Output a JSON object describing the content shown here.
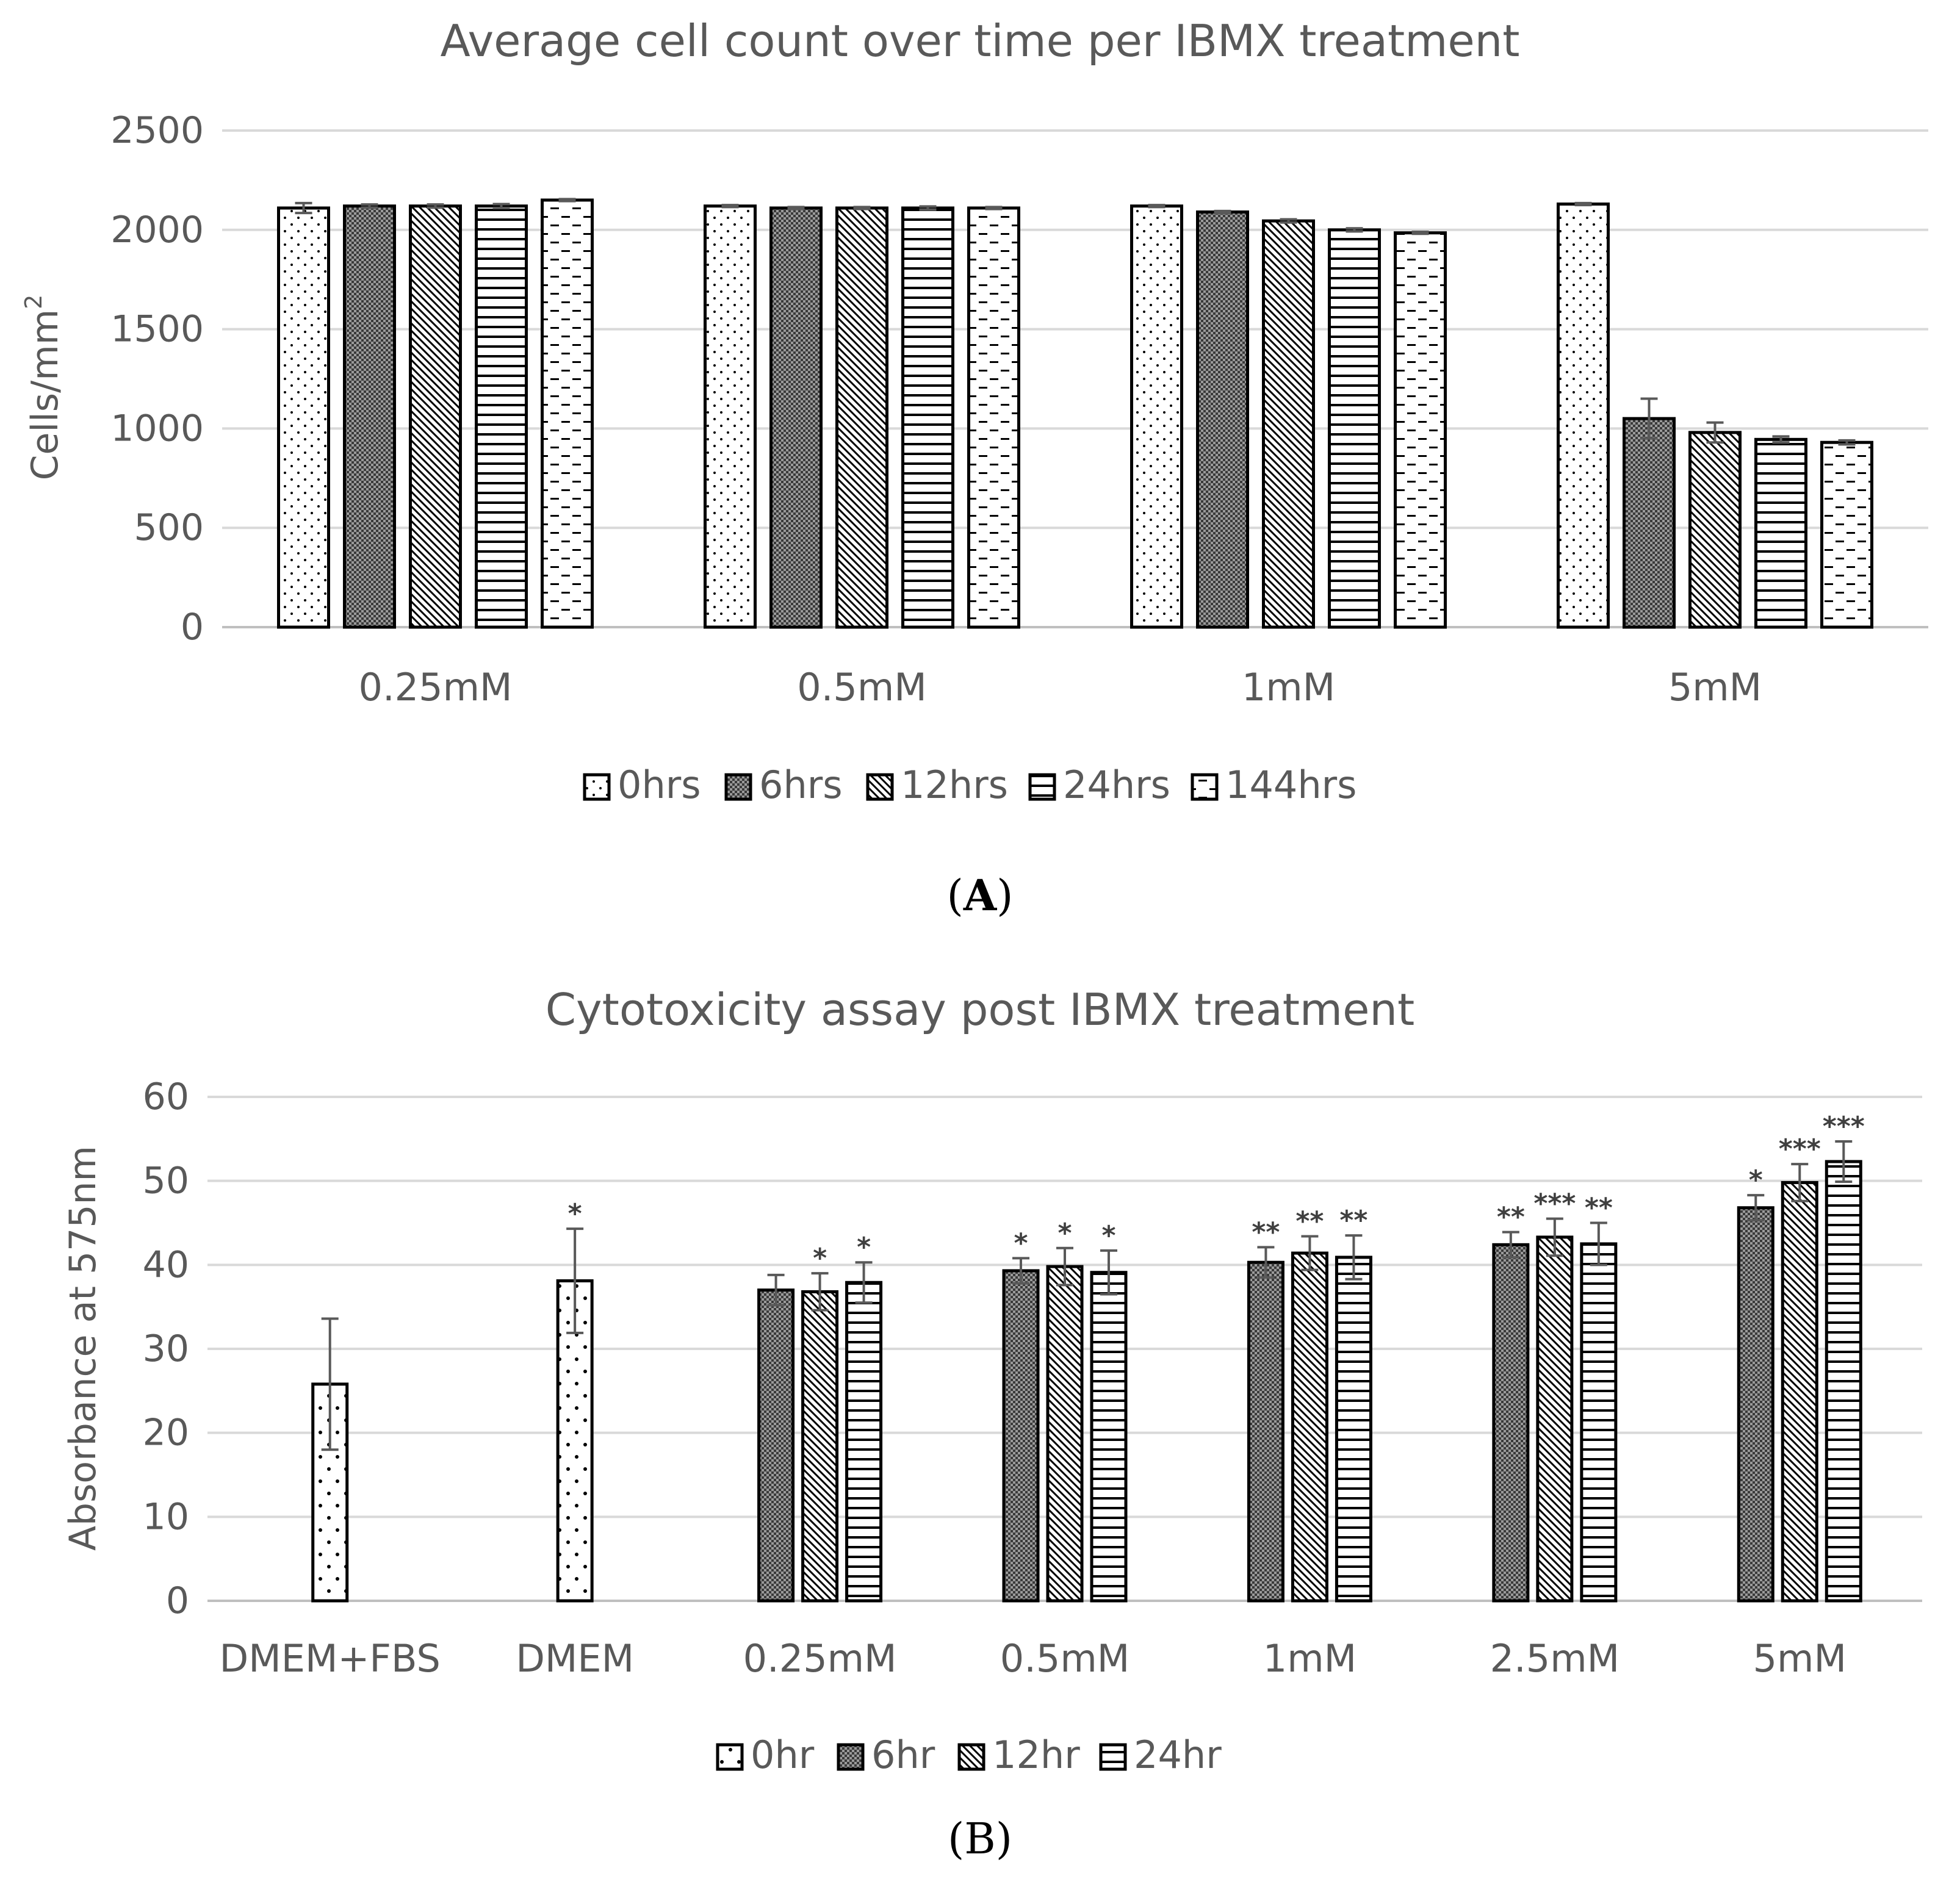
{
  "chart_data": [
    {
      "type": "bar",
      "panel_label": "A",
      "title": "Average cell count over time per IBMX treatment",
      "xlabel": "",
      "ylabel": "Cells/mm",
      "ylabel_superscript": "2",
      "ylim": [
        0,
        2500
      ],
      "yticks": [
        "0",
        "500",
        "1000",
        "1500",
        "2000",
        "2500"
      ],
      "categories": [
        "0.25mM",
        "0.5mM",
        "1mM",
        "5mM"
      ],
      "legend_position": "bottom",
      "grid": true,
      "series": [
        {
          "name": "0hrs",
          "pattern": "dots",
          "values": [
            2110,
            2120,
            2120,
            2130
          ],
          "errors": [
            25,
            5,
            5,
            5
          ]
        },
        {
          "name": "6hrs",
          "pattern": "dense",
          "values": [
            2120,
            2110,
            2090,
            1050
          ],
          "errors": [
            8,
            5,
            5,
            100
          ]
        },
        {
          "name": "12hrs",
          "pattern": "diagonal",
          "values": [
            2120,
            2110,
            2045,
            980
          ],
          "errors": [
            8,
            5,
            8,
            50
          ]
        },
        {
          "name": "24hrs",
          "pattern": "horizontal",
          "values": [
            2120,
            2110,
            2000,
            945
          ],
          "errors": [
            10,
            8,
            8,
            15
          ]
        },
        {
          "name": "144hrs",
          "pattern": "dashes",
          "values": [
            2150,
            2110,
            1985,
            930
          ],
          "errors": [
            5,
            5,
            5,
            10
          ]
        }
      ]
    },
    {
      "type": "bar",
      "panel_label": "B",
      "title": "Cytotoxicity assay post IBMX treatment",
      "xlabel": "",
      "ylabel": "Absorbance at 575nm",
      "ylim": [
        0,
        60
      ],
      "yticks": [
        "0",
        "10",
        "20",
        "30",
        "40",
        "50",
        "60"
      ],
      "categories": [
        "DMEM+FBS",
        "DMEM",
        "0.25mM",
        "0.5mM",
        "1mM",
        "2.5mM",
        "5mM"
      ],
      "legend_position": "bottom",
      "grid": true,
      "series": [
        {
          "name": "0hr",
          "pattern": "dots-large",
          "values": [
            25.8,
            38.1,
            null,
            null,
            null,
            null,
            null
          ],
          "errors": [
            7.8,
            6.2,
            null,
            null,
            null,
            null,
            null
          ],
          "significance": [
            "",
            "*",
            "",
            "",
            "",
            "",
            ""
          ]
        },
        {
          "name": "6hr",
          "pattern": "dense",
          "values": [
            null,
            null,
            37.0,
            39.3,
            40.3,
            42.4,
            46.8
          ],
          "errors": [
            null,
            null,
            1.8,
            1.5,
            1.8,
            1.5,
            1.5
          ],
          "significance": [
            "",
            "",
            "",
            "*",
            "**",
            "**",
            "*"
          ]
        },
        {
          "name": "12hr",
          "pattern": "diagonal",
          "values": [
            null,
            null,
            36.8,
            39.8,
            41.4,
            43.3,
            49.8
          ],
          "errors": [
            null,
            null,
            2.2,
            2.2,
            2.0,
            2.2,
            2.2
          ],
          "significance": [
            "",
            "",
            "*",
            "*",
            "**",
            "***",
            "***"
          ]
        },
        {
          "name": "24hr",
          "pattern": "horizontal",
          "values": [
            null,
            null,
            37.9,
            39.1,
            40.9,
            42.5,
            52.3
          ],
          "errors": [
            null,
            null,
            2.4,
            2.6,
            2.6,
            2.5,
            2.4
          ],
          "significance": [
            "",
            "",
            "*",
            "*",
            "**",
            "**",
            "***"
          ]
        }
      ]
    }
  ]
}
